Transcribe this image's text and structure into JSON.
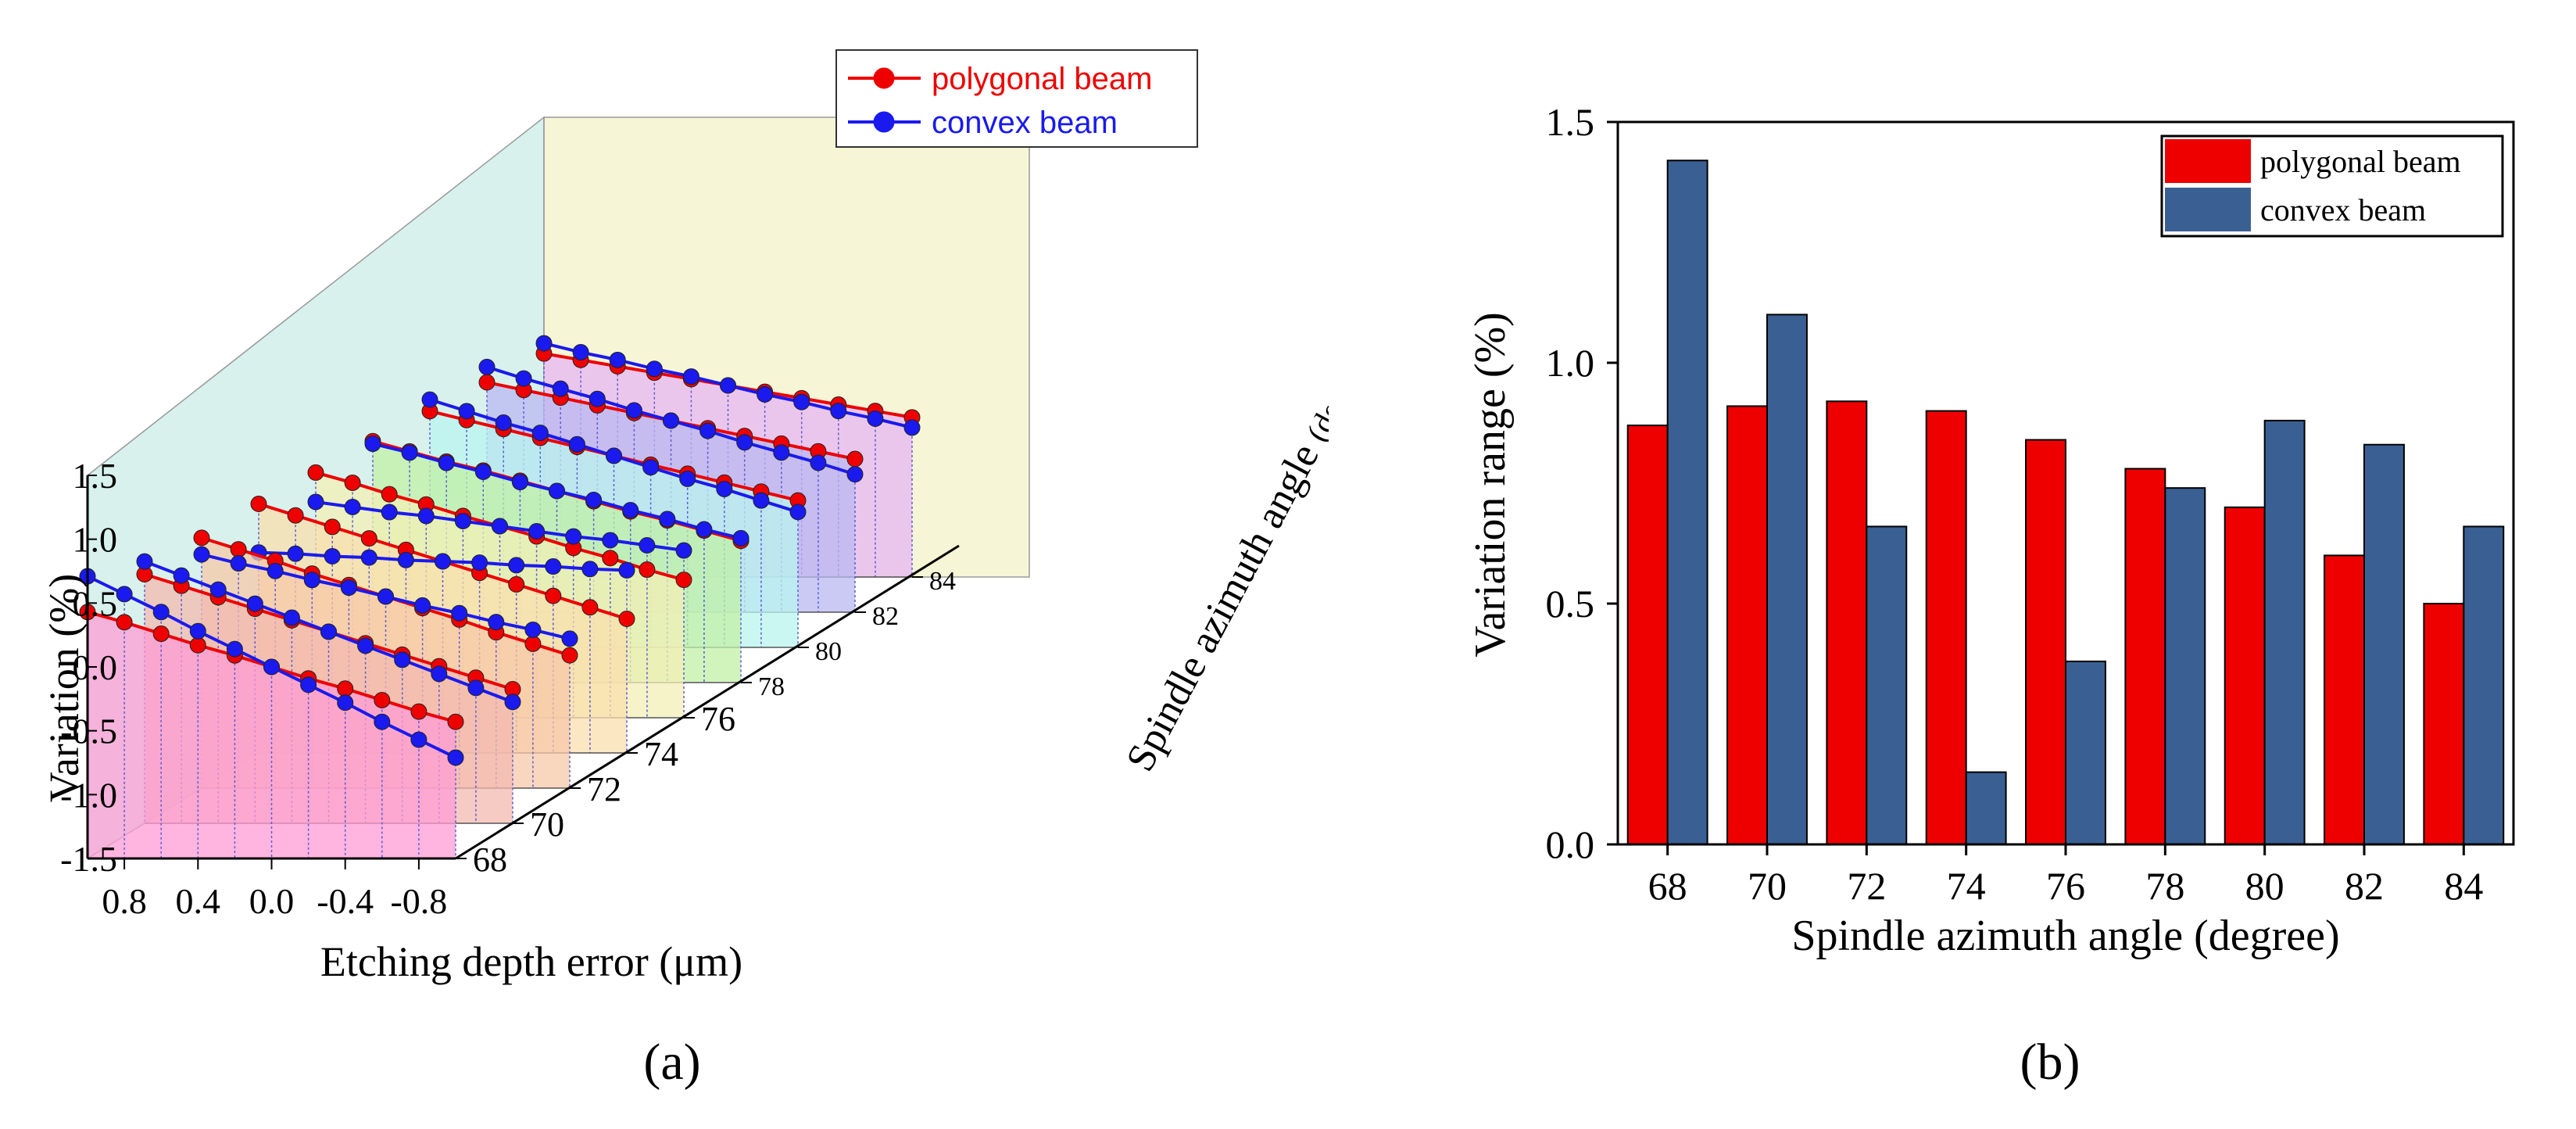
{
  "colors": {
    "polygonal": "#ee0000",
    "convex": "#1a1aee",
    "bar_polygonal": "#ee0000",
    "bar_convex": "#3a6093",
    "wall_left": "#d8f1ec",
    "wall_back": "#f6f5d6",
    "slice_fills": [
      "#ff9cd4",
      "#f3b9b0",
      "#f7c8a8",
      "#f9dfad",
      "#f3efb5",
      "#c2f0a5",
      "#b9f4ef",
      "#b9b8f2",
      "#e7b5f3"
    ]
  },
  "chart_data": [
    {
      "type": "line",
      "panel_label": "(a)",
      "title": "",
      "xlabel": "Etching depth error (μm)",
      "ylabel": "Variation (%)",
      "zlabel_main": "Spindle azimuth angle",
      "zlabel_unit": "(degree)",
      "x": [
        1.0,
        0.8,
        0.6,
        0.4,
        0.2,
        0.0,
        -0.2,
        -0.4,
        -0.6,
        -0.8,
        -1.0
      ],
      "xticks": [
        "0.8",
        "0.4",
        "0.0",
        "-0.4",
        "-0.8"
      ],
      "xtick_values": [
        0.8,
        0.4,
        0.0,
        -0.4,
        -0.8
      ],
      "yticks": [
        "1.5",
        "1.0",
        "0.5",
        "0.0",
        "-0.5",
        "-1.0",
        "-1.5"
      ],
      "ytick_values": [
        1.5,
        1.0,
        0.5,
        0.0,
        -0.5,
        -1.0,
        -1.5
      ],
      "ylim": [
        -1.5,
        1.5
      ],
      "zticks": [
        "68",
        "70",
        "72",
        "74",
        "76",
        "78",
        "80",
        "82",
        "84"
      ],
      "legend": [
        "polygonal beam",
        "convex beam"
      ],
      "legend_position": "top-right",
      "slices": [
        {
          "angle": "68",
          "polygonal": [
            0.43,
            0.35,
            0.26,
            0.17,
            0.09,
            0.0,
            -0.09,
            -0.17,
            -0.26,
            -0.35,
            -0.43
          ],
          "convex": [
            0.71,
            0.57,
            0.43,
            0.28,
            0.14,
            0.0,
            -0.14,
            -0.28,
            -0.43,
            -0.57,
            -0.71
          ]
        },
        {
          "angle": "70",
          "polygonal": [
            0.45,
            0.36,
            0.27,
            0.18,
            0.09,
            0.0,
            -0.09,
            -0.18,
            -0.27,
            -0.36,
            -0.45
          ],
          "convex": [
            0.55,
            0.44,
            0.33,
            0.22,
            0.11,
            0.0,
            -0.11,
            -0.22,
            -0.33,
            -0.44,
            -0.55
          ]
        },
        {
          "angle": "72",
          "polygonal": [
            0.46,
            0.37,
            0.28,
            0.18,
            0.09,
            0.0,
            -0.09,
            -0.18,
            -0.28,
            -0.37,
            -0.46
          ],
          "convex": [
            0.33,
            0.26,
            0.2,
            0.13,
            0.07,
            0.0,
            -0.07,
            -0.13,
            -0.2,
            -0.26,
            -0.33
          ]
        },
        {
          "angle": "74",
          "polygonal": [
            0.45,
            0.36,
            0.27,
            0.18,
            0.09,
            0.0,
            -0.09,
            -0.18,
            -0.27,
            -0.36,
            -0.45
          ],
          "convex": [
            0.07,
            0.06,
            0.04,
            0.03,
            0.01,
            0.0,
            -0.01,
            -0.03,
            -0.04,
            -0.06,
            -0.07
          ]
        },
        {
          "angle": "76",
          "polygonal": [
            0.42,
            0.34,
            0.25,
            0.17,
            0.08,
            0.0,
            -0.08,
            -0.17,
            -0.25,
            -0.34,
            -0.42
          ],
          "convex": [
            0.19,
            0.15,
            0.11,
            0.08,
            0.04,
            0.0,
            -0.04,
            -0.08,
            -0.11,
            -0.15,
            -0.19
          ]
        },
        {
          "angle": "78",
          "polygonal": [
            0.39,
            0.31,
            0.23,
            0.16,
            0.08,
            0.0,
            -0.08,
            -0.16,
            -0.23,
            -0.31,
            -0.39
          ],
          "convex": [
            0.37,
            0.3,
            0.22,
            0.15,
            0.07,
            0.0,
            -0.07,
            -0.15,
            -0.22,
            -0.3,
            -0.37
          ]
        },
        {
          "angle": "80",
          "polygonal": [
            0.35,
            0.28,
            0.21,
            0.14,
            0.07,
            0.0,
            -0.07,
            -0.14,
            -0.21,
            -0.28,
            -0.35
          ],
          "convex": [
            0.44,
            0.35,
            0.26,
            0.18,
            0.09,
            0.0,
            -0.09,
            -0.18,
            -0.26,
            -0.35,
            -0.44
          ]
        },
        {
          "angle": "82",
          "polygonal": [
            0.3,
            0.24,
            0.18,
            0.12,
            0.06,
            0.0,
            -0.06,
            -0.12,
            -0.18,
            -0.24,
            -0.3
          ],
          "convex": [
            0.42,
            0.33,
            0.25,
            0.17,
            0.08,
            0.0,
            -0.08,
            -0.17,
            -0.25,
            -0.33,
            -0.42
          ]
        },
        {
          "angle": "84",
          "polygonal": [
            0.25,
            0.2,
            0.15,
            0.1,
            0.05,
            0.0,
            -0.05,
            -0.1,
            -0.15,
            -0.2,
            -0.25
          ],
          "convex": [
            0.33,
            0.26,
            0.2,
            0.13,
            0.07,
            0.0,
            -0.07,
            -0.13,
            -0.2,
            -0.26,
            -0.33
          ]
        }
      ]
    },
    {
      "type": "bar",
      "panel_label": "(b)",
      "title": "",
      "xlabel": "Spindle azimuth angle (degree)",
      "ylabel": "Variation range (%)",
      "categories": [
        "68",
        "70",
        "72",
        "74",
        "76",
        "78",
        "80",
        "82",
        "84"
      ],
      "series": [
        {
          "name": "polygonal beam",
          "values": [
            0.87,
            0.91,
            0.92,
            0.9,
            0.84,
            0.78,
            0.7,
            0.6,
            0.5
          ]
        },
        {
          "name": "convex beam",
          "values": [
            1.42,
            1.1,
            0.66,
            0.15,
            0.38,
            0.74,
            0.88,
            0.83,
            0.66
          ]
        }
      ],
      "ylim": [
        0,
        1.5
      ],
      "yticks": [
        "0.0",
        "0.5",
        "1.0",
        "1.5"
      ],
      "ytick_values": [
        0.0,
        0.5,
        1.0,
        1.5
      ],
      "legend_position": "top-right"
    }
  ]
}
